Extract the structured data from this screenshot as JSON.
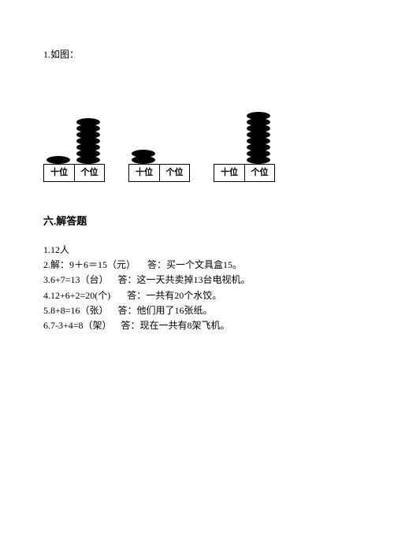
{
  "q1_label": "1.如图：",
  "abaci": [
    {
      "tens_beads": 1,
      "ones_beads": 7
    },
    {
      "tens_beads": 2,
      "ones_beads": 0
    },
    {
      "tens_beads": 0,
      "ones_beads": 8
    }
  ],
  "place_labels": {
    "tens": "十位",
    "ones": "个位"
  },
  "section_title": "六.解答题",
  "answers": [
    "1.12人",
    "2.解：9＋6＝15（元）     答：买一个文具盒15。",
    "3.6+7=13（台）    答：这一天共卖掉13台电视机。",
    "4.12+6+2=20(个)       答：一共有20个水饺。",
    "5.8+8=16（张）    答：他们用了16张纸。",
    "6.7-3+4=8（架）    答：现在一共有8架飞机。"
  ],
  "colors": {
    "bead": "#000000",
    "stick": "#000000",
    "border": "#000000",
    "text": "#000000",
    "background": "#ffffff"
  }
}
